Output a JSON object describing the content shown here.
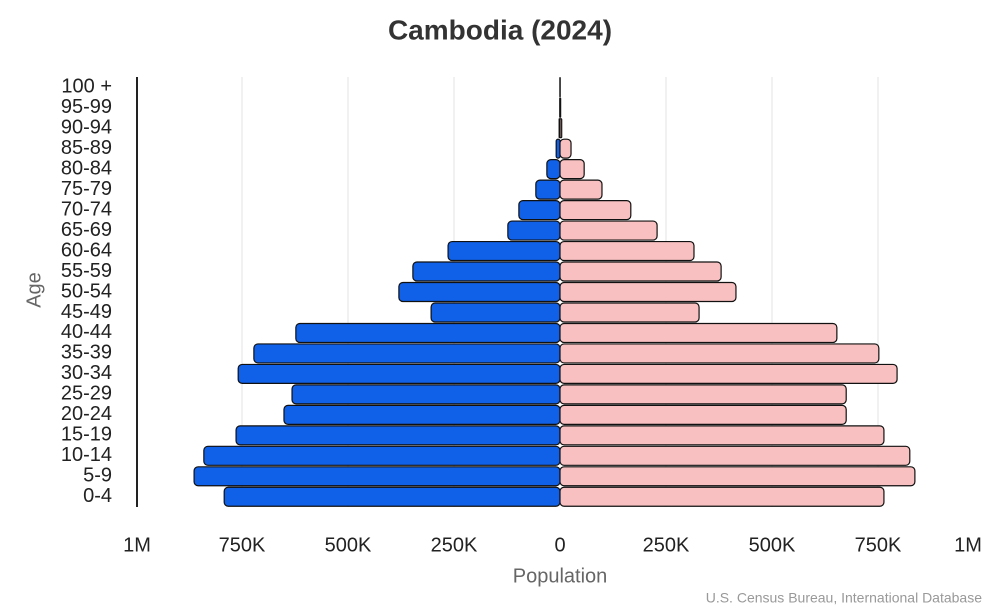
{
  "chart_data": {
    "type": "population-pyramid",
    "title": "Cambodia (2024)",
    "x_label": "Population",
    "y_label": "Age",
    "source": "U.S. Census Bureau, International Database",
    "categories": [
      "100 +",
      "95-99",
      "90-94",
      "85-89",
      "80-84",
      "75-79",
      "70-74",
      "65-69",
      "60-64",
      "55-59",
      "50-54",
      "45-49",
      "40-44",
      "35-39",
      "30-34",
      "25-29",
      "20-24",
      "15-19",
      "10-14",
      "5-9",
      "0-4"
    ],
    "series": [
      {
        "color": "#1060e8",
        "side": "left",
        "values": [
          100,
          500,
          2000,
          9000,
          31000,
          57000,
          97000,
          123000,
          264000,
          347000,
          380000,
          304000,
          623000,
          722000,
          759000,
          632000,
          651000,
          764000,
          840000,
          863000,
          792000
        ]
      },
      {
        "color": "#f8c0c0",
        "side": "right",
        "values": [
          300,
          1500,
          4000,
          26000,
          57000,
          99000,
          167000,
          229000,
          316000,
          380000,
          415000,
          328000,
          653000,
          752000,
          795000,
          675000,
          675000,
          764000,
          825000,
          837000,
          764000
        ]
      }
    ],
    "xlim": [
      -1000000,
      1000000
    ],
    "xticks": [
      {
        "value": -1000000,
        "label": "1M"
      },
      {
        "value": -750000,
        "label": "750K"
      },
      {
        "value": -500000,
        "label": "500K"
      },
      {
        "value": -250000,
        "label": "250K"
      },
      0,
      {
        "value": 250000,
        "label": "250K"
      },
      {
        "value": 500000,
        "label": "500K"
      },
      {
        "value": 750000,
        "label": "750K"
      },
      {
        "value": 1000000,
        "label": "1M"
      }
    ],
    "grid": true
  }
}
